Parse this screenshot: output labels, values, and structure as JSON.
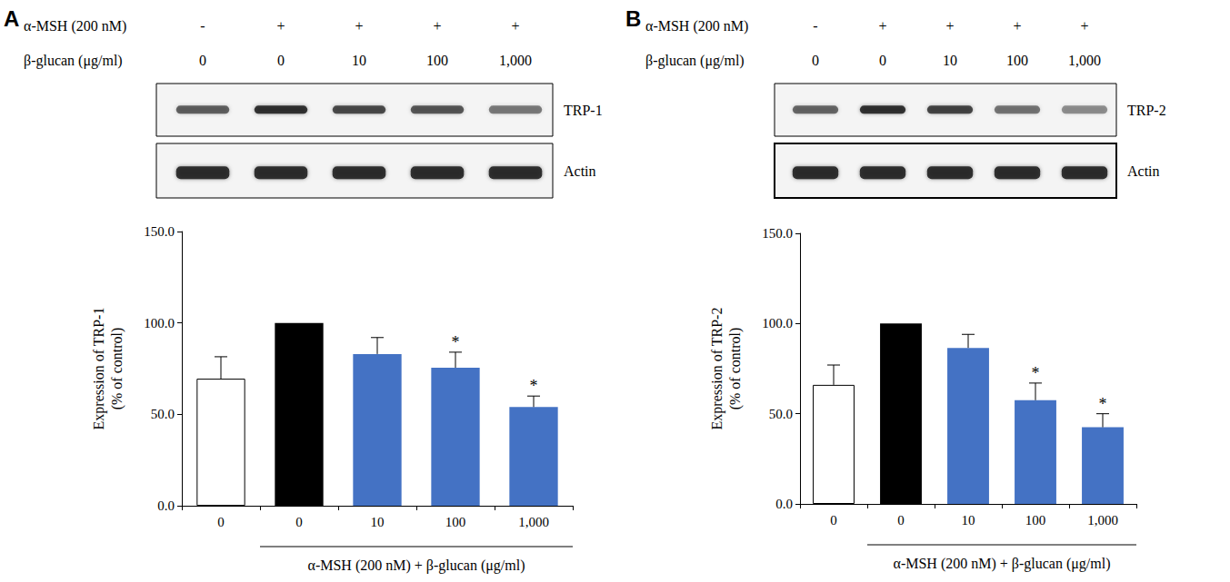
{
  "chart_data": [
    {
      "type": "bar",
      "panel": "A",
      "treatments": [
        {
          "label": "α-MSH (200 nM)",
          "values": [
            "-",
            "+",
            "+",
            "+",
            "+"
          ]
        },
        {
          "label": "β-glucan (μg/ml)",
          "values": [
            "0",
            "0",
            "10",
            "100",
            "1,000"
          ]
        }
      ],
      "blot_labels": [
        "TRP-1",
        "Actin"
      ],
      "categories": [
        "0",
        "0",
        "10",
        "100",
        "1,000"
      ],
      "values": [
        69.5,
        100,
        83,
        75.5,
        54
      ],
      "errors": [
        12,
        null,
        9,
        8.5,
        6
      ],
      "significance": [
        null,
        null,
        null,
        "*",
        "*"
      ],
      "colors": [
        "#ffffff",
        "#000000",
        "#4472c4",
        "#4472c4",
        "#4472c4"
      ],
      "ylim": [
        0,
        150
      ],
      "yticks": [
        {
          "value": 0,
          "label": "0.0"
        },
        {
          "value": 50,
          "label": "50.0"
        },
        {
          "value": 100,
          "label": "100.0"
        },
        {
          "value": 150,
          "label": "150.0"
        }
      ],
      "y_label": "Expression of TRP-1\n(% of control)",
      "x_label": "α-MSH (200 nM) + β-glucan (μg/ml)",
      "grid": false
    },
    {
      "type": "bar",
      "panel": "B",
      "treatments": [
        {
          "label": "α-MSH (200 nM)",
          "values": [
            "-",
            "+",
            "+",
            "+",
            "+"
          ]
        },
        {
          "label": "β-glucan (μg/ml)",
          "values": [
            "0",
            "0",
            "10",
            "100",
            "1,000"
          ]
        }
      ],
      "blot_labels": [
        "TRP-2",
        "Actin"
      ],
      "categories": [
        "0",
        "0",
        "10",
        "100",
        "1,000"
      ],
      "values": [
        66,
        100,
        86.5,
        57.5,
        42.5
      ],
      "errors": [
        11,
        null,
        7.5,
        9.5,
        7.5
      ],
      "significance": [
        null,
        null,
        null,
        "*",
        "*"
      ],
      "colors": [
        "#ffffff",
        "#000000",
        "#4472c4",
        "#4472c4",
        "#4472c4"
      ],
      "ylim": [
        0,
        150
      ],
      "yticks": [
        {
          "value": 0,
          "label": "0.0"
        },
        {
          "value": 50,
          "label": "50.0"
        },
        {
          "value": 100,
          "label": "100.0"
        },
        {
          "value": 150,
          "label": "150.0"
        }
      ],
      "y_label": "Expression of TRP-2\n(% of control)",
      "x_label": "α-MSH (200 nM) + β-glucan (μg/ml)",
      "grid": false
    }
  ]
}
